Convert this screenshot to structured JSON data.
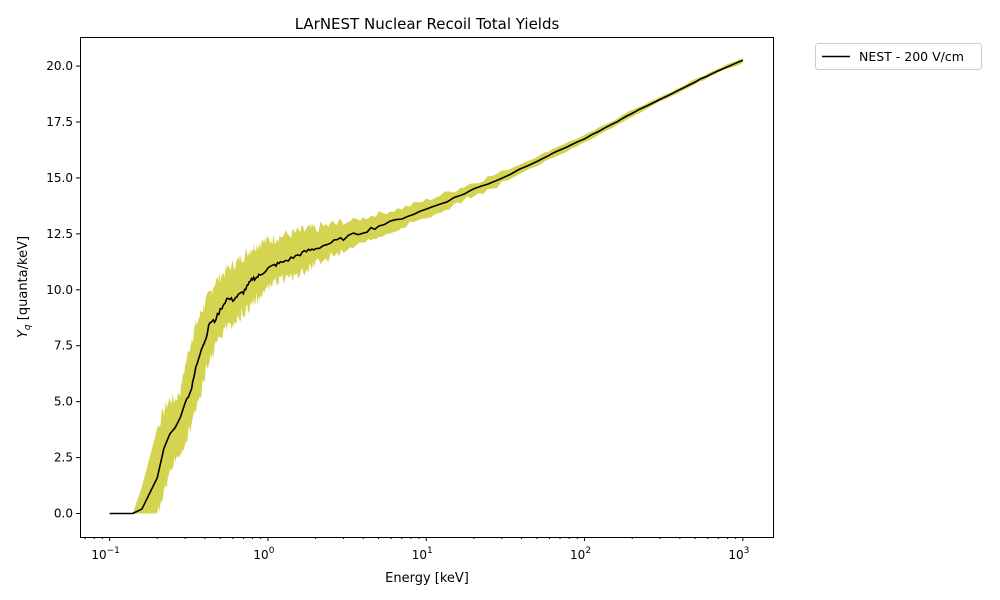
{
  "chart_data": {
    "type": "line",
    "title": "LArNEST Nuclear Recoil Total Yields",
    "xlabel": "Energy [keV]",
    "ylabel_main": "Y",
    "ylabel_sub": "q",
    "ylabel_rest": " [quanta/keV]",
    "xscale": "log",
    "xlim": [
      0.065,
      1550
    ],
    "ylim": [
      -1.05,
      21.3
    ],
    "x_ticks": [
      {
        "value": 0.1,
        "base": "10",
        "exp": "−1"
      },
      {
        "value": 1,
        "base": "10",
        "exp": "0"
      },
      {
        "value": 10,
        "base": "10",
        "exp": "1"
      },
      {
        "value": 100,
        "base": "10",
        "exp": "2"
      },
      {
        "value": 1000,
        "base": "10",
        "exp": "3"
      }
    ],
    "y_ticks": [
      "0.0",
      "2.5",
      "5.0",
      "7.5",
      "10.0",
      "12.5",
      "15.0",
      "17.5",
      "20.0"
    ],
    "legend_position": "outside-top-right",
    "series": [
      {
        "name": "NEST - 200 V/cm",
        "color": "#000000",
        "x": [
          0.1,
          0.14,
          0.16,
          0.2,
          0.22,
          0.24,
          0.26,
          0.28,
          0.3,
          0.33,
          0.35,
          0.38,
          0.4,
          0.43,
          0.46,
          0.5,
          0.55,
          0.6,
          0.65,
          0.7,
          0.75,
          0.8,
          0.85,
          0.9,
          1.0,
          1.1,
          1.2,
          1.4,
          1.6,
          1.8,
          2.0,
          2.5,
          3.0,
          4.0,
          5.0,
          7.0,
          10,
          15,
          20,
          30,
          50,
          70,
          100,
          150,
          200,
          300,
          500,
          700,
          1000
        ],
        "y": [
          0.0,
          0.0,
          0.2,
          1.6,
          2.9,
          3.55,
          3.85,
          4.3,
          4.95,
          5.6,
          6.5,
          7.4,
          7.7,
          8.55,
          8.6,
          9.1,
          9.6,
          9.55,
          9.75,
          9.9,
          10.2,
          10.5,
          10.55,
          10.7,
          10.95,
          11.1,
          11.2,
          11.4,
          11.6,
          11.75,
          11.85,
          12.1,
          12.3,
          12.6,
          12.85,
          13.2,
          13.6,
          14.1,
          14.5,
          15.0,
          15.75,
          16.25,
          16.75,
          17.4,
          17.9,
          18.5,
          19.3,
          19.8,
          20.25
        ]
      }
    ],
    "band": {
      "color": "#cccc33",
      "x": [
        0.1,
        0.14,
        0.16,
        0.2,
        0.22,
        0.24,
        0.26,
        0.28,
        0.3,
        0.33,
        0.35,
        0.38,
        0.4,
        0.43,
        0.46,
        0.5,
        0.55,
        0.6,
        0.65,
        0.7,
        0.75,
        0.8,
        0.85,
        0.9,
        1.0,
        1.1,
        1.2,
        1.4,
        1.6,
        1.8,
        2.0,
        2.5,
        3.0,
        4.0,
        5.0,
        7.0,
        10,
        15,
        20,
        30,
        50,
        70,
        100,
        150,
        200,
        300,
        500,
        700,
        1000
      ],
      "lower": [
        0.0,
        0.0,
        0.0,
        0.0,
        0.8,
        2.0,
        2.5,
        2.8,
        3.1,
        4.0,
        4.6,
        5.4,
        6.2,
        6.9,
        7.3,
        8.0,
        8.3,
        8.5,
        8.8,
        9.0,
        9.2,
        9.4,
        9.6,
        9.8,
        10.1,
        10.3,
        10.4,
        10.6,
        10.8,
        11.0,
        11.2,
        11.5,
        11.7,
        12.1,
        12.4,
        12.8,
        13.25,
        13.8,
        14.2,
        14.75,
        15.55,
        16.05,
        16.6,
        17.25,
        17.75,
        18.4,
        19.2,
        19.7,
        20.15
      ],
      "upper": [
        0.0,
        0.0,
        1.2,
        3.8,
        4.6,
        5.1,
        5.1,
        5.5,
        6.6,
        7.8,
        8.4,
        9.0,
        9.4,
        9.8,
        10.3,
        10.6,
        10.9,
        11.1,
        11.3,
        11.5,
        11.7,
        11.9,
        12.0,
        12.1,
        12.2,
        12.3,
        12.4,
        12.5,
        12.6,
        12.7,
        12.75,
        12.9,
        13.0,
        13.2,
        13.4,
        13.65,
        14.0,
        14.45,
        14.8,
        15.25,
        15.95,
        16.45,
        16.9,
        17.55,
        18.05,
        18.6,
        19.4,
        19.9,
        20.35
      ]
    }
  }
}
